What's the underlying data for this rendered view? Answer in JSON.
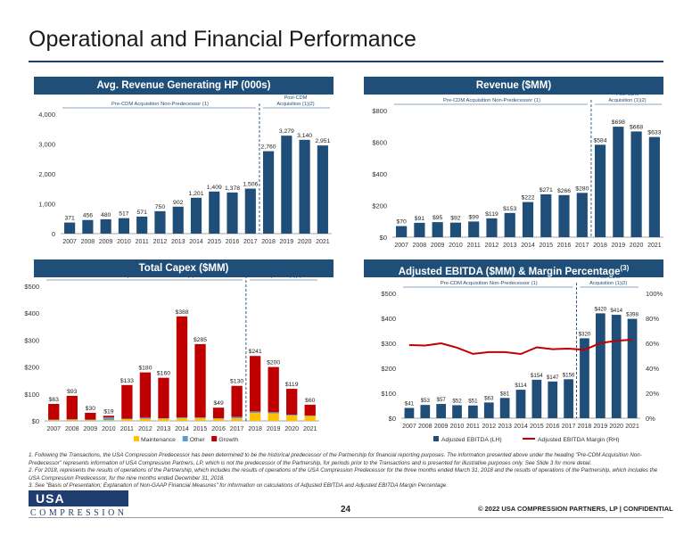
{
  "page": {
    "title": "Operational and Financial Performance",
    "page_number": "24",
    "copyright": "© 2022 USA COMPRESSION PARTNERS, LP   |  CONFIDENTIAL",
    "logo_top": "USA",
    "logo_bottom": "COMPRESSION"
  },
  "footnotes": [
    "1.  Following the Transactions, the USA Compression Predecessor has been determined to be the historical predecessor of the Partnership for financial reporting purposes. The information presented above under the heading \"Pre-CDM Acquisition Non-Predecessor\" represents information of USA Compression Partners, LP, which is not the predecessor of the Partnership, for periods prior to the Transactions and is presented for illustrative purposes only. See Slide 3 for more detail.",
    "2.  For 2018, represents the results of operations of the Partnership, which includes the results of operations of the USA Compression Predecessor for the three months ended March 31, 2018 and the results of operations of the Partnership, which includes the USA Compression Predecessor, for the nine months ended December 31, 2018.",
    "3.  See \"Basis of Presentation; Explanation of Non-GAAP Financial Measures\" for information on calculations of Adjusted EBITDA and Adjusted EBITDA Margin Percentage."
  ],
  "colors": {
    "navy": "#1f4e79",
    "bar": "#1f4e79",
    "capex_growth": "#c00000",
    "capex_other": "#5b9bd5",
    "capex_maint": "#ffc000",
    "margin_line": "#c00000"
  },
  "chart_data": [
    {
      "type": "bar",
      "title": "Avg. Revenue Generating HP (000s)",
      "pre_label": "Pre-CDM Acquisition Non-Predecessor",
      "pre_sup": "(1)",
      "post_label_1": "Post-CDM",
      "post_label_2": "Acquisition",
      "post_sup": "(1)(2)",
      "categories": [
        "2007",
        "2008",
        "2009",
        "2010",
        "2011",
        "2012",
        "2013",
        "2014",
        "2015",
        "2016",
        "2017",
        "2018",
        "2019",
        "2020",
        "2021"
      ],
      "values": [
        371,
        456,
        480,
        517,
        571,
        750,
        902,
        1201,
        1409,
        1378,
        1506,
        2760,
        3279,
        3140,
        2951
      ],
      "labels": [
        "371",
        "456",
        "480",
        "517",
        "571",
        "750",
        "902",
        "1,201",
        "1,409",
        "1,378",
        "1,506",
        "2,760",
        "3,279",
        "3,140",
        "2,951"
      ],
      "ylim": [
        0,
        4000
      ],
      "yticks": [
        0,
        1000,
        2000,
        3000,
        4000
      ],
      "ytick_labels": [
        "0",
        "1,000",
        "2,000",
        "3,000",
        "4,000"
      ],
      "grid": false
    },
    {
      "type": "bar",
      "title": "Revenue ($MM)",
      "pre_label": "Pre-CDM Acquisition Non-Predecessor",
      "pre_sup": "(1)",
      "post_label_1": "Post-CDM",
      "post_label_2": "Acquisition",
      "post_sup": "(1)(2)",
      "categories": [
        "2007",
        "2008",
        "2009",
        "2010",
        "2011",
        "2012",
        "2013",
        "2014",
        "2015",
        "2016",
        "2017",
        "2018",
        "2019",
        "2020",
        "2021"
      ],
      "values": [
        70,
        91,
        95,
        92,
        99,
        119,
        153,
        222,
        271,
        266,
        280,
        584,
        698,
        668,
        633
      ],
      "labels": [
        "$70",
        "$91",
        "$95",
        "$92",
        "$99",
        "$119",
        "$153",
        "$222",
        "$271",
        "$266",
        "$280",
        "$584",
        "$698",
        "$668",
        "$633"
      ],
      "ylim": [
        0,
        800
      ],
      "yticks": [
        0,
        200,
        400,
        600,
        800
      ],
      "ytick_labels": [
        "$0",
        "$200",
        "$400",
        "$600",
        "$800"
      ],
      "grid": false
    },
    {
      "type": "bar",
      "stacked": true,
      "title": "Total Capex ($MM)",
      "pre_label": "Pre-CDM Acquisition Non-Predecessor",
      "pre_sup": "(1)",
      "post_label_1": "Post-CDM",
      "post_label_2": "Acquisition",
      "post_sup": "(1)(2)",
      "categories": [
        "2007",
        "2008",
        "2009",
        "2010",
        "2011",
        "2012",
        "2013",
        "2014",
        "2015",
        "2016",
        "2017",
        "2018",
        "2019",
        "2020",
        "2021"
      ],
      "totals": [
        63,
        93,
        30,
        19,
        133,
        180,
        160,
        388,
        285,
        49,
        130,
        241,
        200,
        119,
        60
      ],
      "total_labels": [
        "$63",
        "$93",
        "$30",
        "$19",
        "$133",
        "$180",
        "$160",
        "$388",
        "$285",
        "$49",
        "$130",
        "$241",
        "$200",
        "$119",
        "$60"
      ],
      "series": [
        {
          "name": "Maintenance",
          "values": [
            3,
            4,
            3,
            3,
            6,
            8,
            8,
            10,
            10,
            8,
            10,
            30,
            28,
            20,
            18
          ]
        },
        {
          "name": "Other",
          "values": [
            2,
            2,
            2,
            10,
            2,
            4,
            2,
            3,
            3,
            2,
            5,
            5,
            4,
            3,
            2
          ]
        },
        {
          "name": "Growth",
          "values": [
            58,
            87,
            25,
            6,
            125,
            168,
            150,
            375,
            272,
            39,
            115,
            206,
            168,
            96,
            40
          ]
        }
      ],
      "ylim": [
        0,
        500
      ],
      "yticks": [
        0,
        100,
        200,
        300,
        400,
        500
      ],
      "ytick_labels": [
        "$0",
        "$100",
        "$200",
        "$300",
        "$400",
        "$500"
      ],
      "legend": "bottom",
      "grid": false
    },
    {
      "type": "bar",
      "title": "Adjusted EBITDA ($MM) & Margin Percentage",
      "title_sup": "(3)",
      "pre_label": "Pre-CDM Acquisition Non-Predecessor",
      "pre_sup": "(1)",
      "post_label_1": "Post-CDM",
      "post_label_2": "Acquisition",
      "post_sup": "(1)(2)",
      "categories": [
        "2007",
        "2008",
        "2009",
        "2010",
        "2011",
        "2012",
        "2013",
        "2014",
        "2015",
        "2016",
        "2017",
        "2018",
        "2019",
        "2020",
        "2021"
      ],
      "series": [
        {
          "name": "Adjusted EBITDA (LH)",
          "values": [
            41,
            53,
            57,
            52,
            51,
            63,
            81,
            114,
            154,
            147,
            156,
            320,
            420,
            414,
            398
          ]
        },
        {
          "name": "Adjusted EBITDA Margin (RH)",
          "values": [
            58.6,
            58.2,
            60.0,
            56.5,
            51.5,
            52.9,
            52.9,
            51.4,
            56.8,
            55.3,
            55.7,
            54.8,
            60.2,
            62.0,
            62.9
          ]
        }
      ],
      "labels": [
        "$41",
        "$53",
        "$57",
        "$52",
        "$51",
        "$63",
        "$81",
        "$114",
        "$154",
        "$147",
        "$156",
        "$320",
        "$420",
        "$414",
        "$398"
      ],
      "ylim": [
        0,
        500
      ],
      "yticks": [
        0,
        100,
        200,
        300,
        400,
        500
      ],
      "ytick_labels": [
        "$0",
        "$100",
        "$200",
        "$300",
        "$400",
        "$500"
      ],
      "y2lim": [
        0,
        100
      ],
      "y2ticks": [
        0,
        20,
        40,
        60,
        80,
        100
      ],
      "y2tick_labels": [
        "0%",
        "20%",
        "40%",
        "60%",
        "80%",
        "100%"
      ],
      "legend": "bottom",
      "grid": false
    }
  ]
}
